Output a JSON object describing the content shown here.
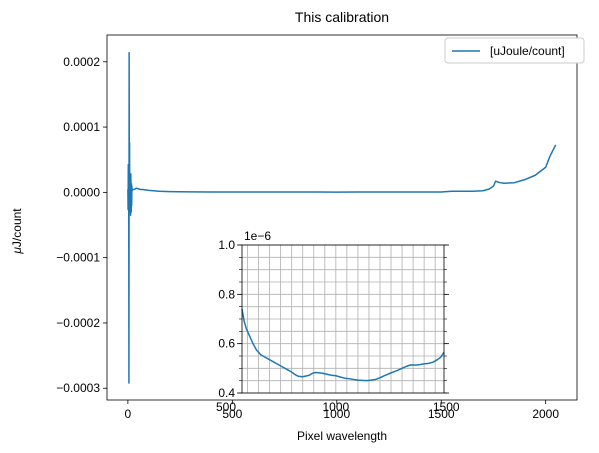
{
  "chart_data": [
    {
      "type": "line",
      "title": "This calibration",
      "xlabel": "",
      "ylabel": "$\\mu$J/count",
      "xlim": [
        -100,
        2150
      ],
      "ylim": [
        -0.000318,
        0.000241
      ],
      "xticks": [
        0,
        500,
        1000,
        1500,
        2000
      ],
      "xtick_labels": [
        "0",
        "500",
        "1000",
        "1500",
        "2000"
      ],
      "yticks": [
        -0.0003,
        -0.0002,
        -0.0001,
        0.0,
        0.0001,
        0.0002
      ],
      "ytick_labels": [
        "−0.0003",
        "−0.0002",
        "−0.0001",
        "0.0000",
        "0.0001",
        "0.0002"
      ],
      "grid": false,
      "legend": {
        "position": "top-right",
        "entries": [
          "[uJoule/count]"
        ]
      },
      "series": [
        {
          "name": "[uJoule/count]",
          "color": "#1f77b4",
          "x": [
            0,
            1,
            2,
            3,
            4,
            5,
            6,
            7,
            8,
            9,
            10,
            11,
            12,
            13,
            14,
            15,
            16,
            17,
            18,
            19,
            20,
            22,
            25,
            28,
            30,
            40,
            50,
            60,
            70,
            80,
            100,
            150,
            200,
            300,
            400,
            500,
            600,
            700,
            800,
            900,
            1000,
            1100,
            1200,
            1300,
            1400,
            1500,
            1550,
            1600,
            1650,
            1700,
            1730,
            1750,
            1760,
            1780,
            1800,
            1850,
            1900,
            1950,
            2000,
            2020,
            2048
          ],
          "values": [
            4.4e-06,
            -2.65e-05,
            4.25e-05,
            -2.1e-05,
            2.8e-05,
            -0.000292,
            0.000214,
            -3.01e-05,
            7.6e-05,
            -3.01e-05,
            2.81e-05,
            -2.01e-05,
            2.2e-05,
            -3.51e-05,
            2.81e-05,
            6.4e-06,
            -3.01e-05,
            1.3e-05,
            -2.01e-05,
            9.4e-06,
            2.4e-06,
            4.4e-06,
            4.4e-06,
            4.4e-06,
            4.4e-06,
            6.4e-06,
            5.5e-06,
            4.4e-06,
            4.4e-06,
            4e-06,
            3e-06,
            1.7e-06,
            1.2e-06,
            6.8e-07,
            5.7e-07,
            5e-07,
            4.8e-07,
            4.7e-07,
            4.8e-07,
            4.7e-07,
            4.5e-07,
            4.6e-07,
            4.8e-07,
            5.5e-07,
            5.8e-07,
            6e-07,
            1.7e-06,
            1.8e-06,
            1.8e-06,
            2.5e-06,
            5.2e-06,
            9.5e-06,
            1.7e-05,
            1.5e-05,
            1.4e-05,
            1.48e-05,
            1.95e-05,
            2.62e-05,
            3.85e-05,
            5.5e-05,
            7.27e-05
          ]
        }
      ]
    },
    {
      "type": "line",
      "title": "",
      "xlabel": "Pixel wavelength",
      "ylabel": "",
      "offset_label": "1e−6",
      "xlim": [
        575,
        1490
      ],
      "ylim": [
        4e-07,
        1e-06
      ],
      "xticks": [
        500,
        1000,
        1500
      ],
      "xtick_labels": [
        "500",
        "1000",
        "1500"
      ],
      "yticks": [
        4e-07,
        6e-07,
        8e-07,
        1e-06
      ],
      "ytick_labels": [
        "0.4",
        "0.6",
        "0.8",
        "1.0"
      ],
      "grid": true,
      "series": [
        {
          "color": "#1f77b4",
          "x": [
            575,
            585,
            595,
            610,
            625,
            640,
            660,
            680,
            700,
            720,
            740,
            760,
            780,
            800,
            810,
            820,
            830,
            840,
            850,
            860,
            870,
            880,
            890,
            900,
            910,
            920,
            940,
            960,
            980,
            1000,
            1020,
            1040,
            1060,
            1080,
            1100,
            1120,
            1140,
            1160,
            1180,
            1200,
            1220,
            1240,
            1260,
            1280,
            1300,
            1320,
            1340,
            1360,
            1380,
            1400,
            1420,
            1440,
            1460,
            1475,
            1490
          ],
          "values": [
            7.4e-07,
            6.9e-07,
            6.6e-07,
            6.3e-07,
            6e-07,
            5.75e-07,
            5.55e-07,
            5.45e-07,
            5.35e-07,
            5.25e-07,
            5.15e-07,
            5.05e-07,
            4.95e-07,
            4.85e-07,
            4.78e-07,
            4.72e-07,
            4.68e-07,
            4.67e-07,
            4.66e-07,
            4.68e-07,
            4.7e-07,
            4.72e-07,
            4.78e-07,
            4.82e-07,
            4.83e-07,
            4.82e-07,
            4.8e-07,
            4.76e-07,
            4.72e-07,
            4.7e-07,
            4.65e-07,
            4.6e-07,
            4.58e-07,
            4.55e-07,
            4.52e-07,
            4.51e-07,
            4.5e-07,
            4.52e-07,
            4.55e-07,
            4.62e-07,
            4.7e-07,
            4.78e-07,
            4.85e-07,
            4.92e-07,
            5e-07,
            5.08e-07,
            5.14e-07,
            5.13e-07,
            5.15e-07,
            5.18e-07,
            5.2e-07,
            5.25e-07,
            5.35e-07,
            5.45e-07,
            5.65e-07
          ]
        }
      ]
    }
  ]
}
